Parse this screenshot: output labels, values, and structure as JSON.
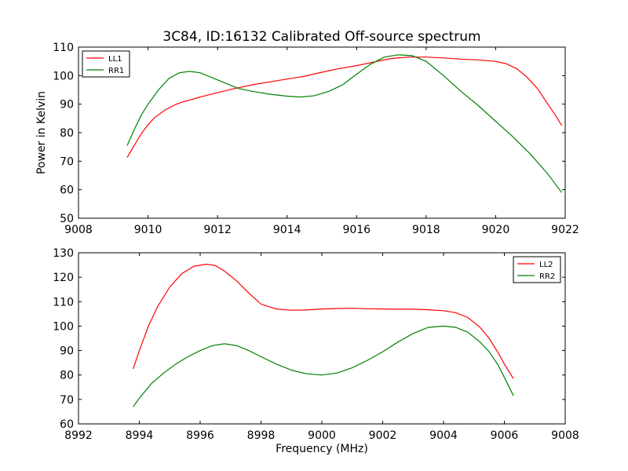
{
  "figure": {
    "title": "3C84, ID:16132 Calibrated Off-source spectrum",
    "xlabel": "Frequency (MHz)"
  },
  "chart_data": [
    {
      "type": "line",
      "title": "3C84, ID:16132 Calibrated Off-source spectrum",
      "xlabel": "",
      "ylabel": "Power in Kelvin",
      "xlim": [
        9008,
        9022
      ],
      "ylim": [
        50,
        110
      ],
      "xticks": [
        9008,
        9010,
        9012,
        9014,
        9016,
        9018,
        9020,
        9022
      ],
      "yticks": [
        50,
        60,
        70,
        80,
        90,
        100,
        110
      ],
      "grid": false,
      "legend_position": "upper-left",
      "series": [
        {
          "name": "LL1",
          "color": "#ff0000",
          "x": [
            9009.4,
            9009.6,
            9009.8,
            9010.0,
            9010.2,
            9010.5,
            9010.8,
            9011.0,
            9011.5,
            9012.0,
            9012.5,
            9013.0,
            9013.5,
            9014.0,
            9014.5,
            9015.0,
            9015.5,
            9016.0,
            9016.5,
            9017.0,
            9017.5,
            9018.0,
            9018.5,
            9019.0,
            9019.5,
            9020.0,
            9020.3,
            9020.6,
            9020.9,
            9021.2,
            9021.5,
            9021.7,
            9021.9
          ],
          "y": [
            71.3,
            75.5,
            79.5,
            82.8,
            85.4,
            88.0,
            89.9,
            90.8,
            92.5,
            94.0,
            95.5,
            96.8,
            97.8,
            98.8,
            99.8,
            101.2,
            102.5,
            103.5,
            104.8,
            106.0,
            106.5,
            106.5,
            106.2,
            105.8,
            105.5,
            105.0,
            104.2,
            102.5,
            99.5,
            95.5,
            90.0,
            86.5,
            82.5
          ]
        },
        {
          "name": "RR1",
          "color": "#008000",
          "x": [
            9009.4,
            9009.6,
            9009.8,
            9010.0,
            9010.3,
            9010.6,
            9010.9,
            9011.2,
            9011.5,
            9011.8,
            9012.2,
            9012.6,
            9013.0,
            9013.5,
            9014.0,
            9014.4,
            9014.8,
            9015.2,
            9015.6,
            9016.0,
            9016.4,
            9016.8,
            9017.2,
            9017.6,
            9018.0,
            9018.5,
            9019.0,
            9019.5,
            9020.0,
            9020.5,
            9021.0,
            9021.5,
            9021.9
          ],
          "y": [
            75.5,
            81.0,
            86.0,
            90.0,
            95.0,
            99.0,
            101.0,
            101.5,
            101.0,
            99.5,
            97.5,
            95.5,
            94.5,
            93.5,
            92.8,
            92.5,
            93.0,
            94.5,
            96.8,
            100.5,
            104.0,
            106.5,
            107.3,
            107.0,
            105.0,
            100.0,
            94.5,
            89.5,
            84.0,
            78.5,
            72.5,
            65.5,
            59.0
          ]
        }
      ]
    },
    {
      "type": "line",
      "title": "",
      "xlabel": "Frequency (MHz)",
      "ylabel": "",
      "xlim": [
        8992,
        9008
      ],
      "ylim": [
        60,
        130
      ],
      "xticks": [
        8992,
        8994,
        8996,
        8998,
        9000,
        9002,
        9004,
        9006,
        9008
      ],
      "yticks": [
        60,
        70,
        80,
        90,
        100,
        110,
        120,
        130
      ],
      "grid": false,
      "legend_position": "upper-right",
      "series": [
        {
          "name": "LL2",
          "color": "#ff0000",
          "x": [
            8993.8,
            8994.0,
            8994.3,
            8994.6,
            8995.0,
            8995.4,
            8995.8,
            8996.2,
            8996.5,
            8996.8,
            8997.2,
            8997.6,
            8998.0,
            8998.5,
            8999.0,
            8999.5,
            9000.0,
            9000.5,
            9001.0,
            9001.5,
            9002.0,
            9002.5,
            9003.0,
            9003.5,
            9004.0,
            9004.4,
            9004.8,
            9005.2,
            9005.5,
            9005.8,
            9006.0,
            9006.3
          ],
          "y": [
            82.5,
            90.0,
            100.0,
            108.0,
            116.0,
            121.5,
            124.5,
            125.3,
            124.8,
            122.5,
            118.5,
            113.5,
            109.0,
            107.0,
            106.5,
            106.6,
            107.0,
            107.2,
            107.3,
            107.1,
            107.0,
            106.9,
            106.9,
            106.7,
            106.3,
            105.5,
            103.5,
            99.5,
            95.0,
            89.0,
            84.5,
            78.5
          ]
        },
        {
          "name": "RR2",
          "color": "#008000",
          "x": [
            8993.8,
            8994.0,
            8994.4,
            8994.8,
            8995.2,
            8995.6,
            8996.0,
            8996.4,
            8996.8,
            8997.2,
            8997.6,
            8998.0,
            8998.5,
            8999.0,
            8999.5,
            9000.0,
            9000.5,
            9001.0,
            9001.5,
            9002.0,
            9002.5,
            9003.0,
            9003.5,
            9004.0,
            9004.4,
            9004.8,
            9005.2,
            9005.5,
            9005.8,
            9006.0,
            9006.3
          ],
          "y": [
            67.0,
            70.5,
            76.5,
            80.8,
            84.5,
            87.5,
            90.0,
            92.0,
            92.8,
            92.0,
            90.0,
            87.5,
            84.5,
            82.0,
            80.5,
            80.0,
            80.8,
            83.0,
            86.0,
            89.5,
            93.5,
            97.0,
            99.5,
            100.0,
            99.5,
            97.5,
            93.5,
            89.5,
            84.0,
            79.0,
            71.5
          ]
        }
      ]
    }
  ]
}
